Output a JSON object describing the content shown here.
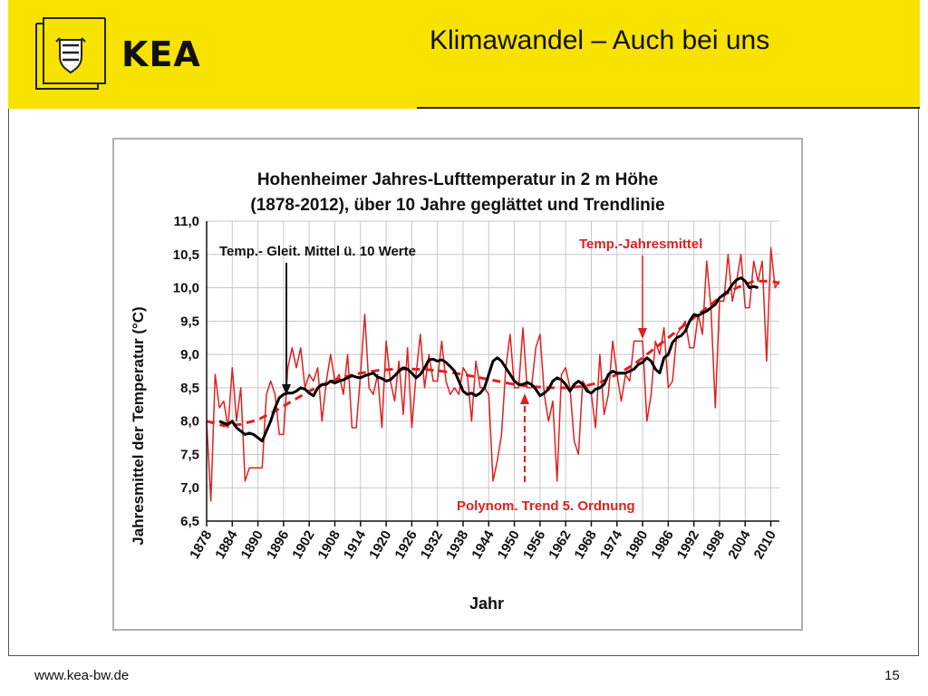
{
  "header": {
    "logo_text": "KEA",
    "slide_title": "Klimawandel – Auch bei uns"
  },
  "footer": {
    "url": "www.kea-bw.de",
    "page_number": "15"
  },
  "icons": {
    "coat_of_arms": "coat-of-arms-icon"
  },
  "colors": {
    "header_bg": "#f7e200",
    "annual_series": "#e02020",
    "trend_series": "#e02020",
    "smoothed_series": "#000000",
    "chart_bg": "#ffffff",
    "chart_border": "#b0b0b0"
  },
  "chart_data": {
    "type": "line",
    "title_line1": "Hohenheimer Jahres-Lufttemperatur in 2 m Höhe",
    "title_line2": "(1878-2012), über 10 Jahre geglättet und Trendlinie",
    "xlabel": "Jahr",
    "ylabel": "Jahresmittel der Temperatur (°C)",
    "xlim": [
      1878,
      2012
    ],
    "ylim": [
      6.5,
      11.0
    ],
    "grid": true,
    "x_ticks": [
      1878,
      1884,
      1890,
      1896,
      1902,
      1908,
      1914,
      1920,
      1926,
      1932,
      1938,
      1944,
      1950,
      1956,
      1962,
      1968,
      1974,
      1980,
      1986,
      1992,
      1998,
      2004,
      2010
    ],
    "y_ticks": [
      6.5,
      7.0,
      7.5,
      8.0,
      8.5,
      9.0,
      9.5,
      10.0,
      10.5,
      11.0
    ],
    "y_tick_labels": [
      "6,5",
      "7,0",
      "7,5",
      "8,0",
      "8,5",
      "9,0",
      "9,5",
      "10,0",
      "10,5",
      "11,0"
    ],
    "annotations": {
      "smoothed": "Temp.- Gleit. Mittel ü. 10 Werte",
      "annual": "Temp.-Jahresmittel",
      "trend": "Polynom. Trend 5. Ordnung"
    },
    "series": [
      {
        "key": "annual",
        "x": [
          1878,
          1879,
          1880,
          1881,
          1882,
          1883,
          1884,
          1885,
          1886,
          1887,
          1888,
          1889,
          1890,
          1891,
          1892,
          1893,
          1894,
          1895,
          1896,
          1897,
          1898,
          1899,
          1900,
          1901,
          1902,
          1903,
          1904,
          1905,
          1906,
          1907,
          1908,
          1909,
          1910,
          1911,
          1912,
          1913,
          1914,
          1915,
          1916,
          1917,
          1918,
          1919,
          1920,
          1921,
          1922,
          1923,
          1924,
          1925,
          1926,
          1927,
          1928,
          1929,
          1930,
          1931,
          1932,
          1933,
          1934,
          1935,
          1936,
          1937,
          1938,
          1939,
          1940,
          1941,
          1942,
          1943,
          1944,
          1945,
          1946,
          1947,
          1948,
          1949,
          1950,
          1951,
          1952,
          1953,
          1954,
          1955,
          1956,
          1957,
          1958,
          1959,
          1960,
          1961,
          1962,
          1963,
          1964,
          1965,
          1966,
          1967,
          1968,
          1969,
          1970,
          1971,
          1972,
          1973,
          1974,
          1975,
          1976,
          1977,
          1978,
          1979,
          1980,
          1981,
          1982,
          1983,
          1984,
          1985,
          1986,
          1987,
          1988,
          1989,
          1990,
          1991,
          1992,
          1993,
          1994,
          1995,
          1996,
          1997,
          1998,
          1999,
          2000,
          2001,
          2002,
          2003,
          2004,
          2005,
          2006,
          2007,
          2008,
          2009,
          2010,
          2011,
          2012
        ],
        "values": [
          8.0,
          6.8,
          8.7,
          8.2,
          8.3,
          7.9,
          8.8,
          8.0,
          8.5,
          7.1,
          7.3,
          7.3,
          7.3,
          7.3,
          8.4,
          8.6,
          8.4,
          7.8,
          7.8,
          8.8,
          9.1,
          8.8,
          9.1,
          8.5,
          8.7,
          8.6,
          8.8,
          8.0,
          8.6,
          9.0,
          8.6,
          8.7,
          8.4,
          9.0,
          7.9,
          7.9,
          8.7,
          9.6,
          8.5,
          8.4,
          8.7,
          7.9,
          9.2,
          8.6,
          8.3,
          8.9,
          8.1,
          9.1,
          7.9,
          8.7,
          9.3,
          8.5,
          9.0,
          8.6,
          8.6,
          9.2,
          8.6,
          8.4,
          8.5,
          8.4,
          8.8,
          8.7,
          8.0,
          8.9,
          8.5,
          8.5,
          8.4,
          7.1,
          7.4,
          7.8,
          8.8,
          9.3,
          8.5,
          8.5,
          9.4,
          8.5,
          8.5,
          9.1,
          9.3,
          8.4,
          8.0,
          8.3,
          7.1,
          8.7,
          8.8,
          8.5,
          7.7,
          7.5,
          8.6,
          8.5,
          8.4,
          7.9,
          9.0,
          8.1,
          8.4,
          9.2,
          8.7,
          8.3,
          8.7,
          8.6,
          9.2,
          9.2,
          9.2,
          8.0,
          8.4,
          9.2,
          9.0,
          9.4,
          8.5,
          8.6,
          9.3,
          9.4,
          9.5,
          9.1,
          9.1,
          9.6,
          9.3,
          10.4,
          9.7,
          8.2,
          9.8,
          9.8,
          10.5,
          9.8,
          10.1,
          10.5,
          9.7,
          9.7,
          10.4,
          10.1,
          10.4,
          8.9,
          10.6,
          10.0,
          10.1
        ]
      },
      {
        "key": "smoothed",
        "x": [
          1881,
          1882,
          1883,
          1884,
          1885,
          1886,
          1887,
          1888,
          1889,
          1890,
          1891,
          1892,
          1893,
          1894,
          1895,
          1896,
          1897,
          1898,
          1899,
          1900,
          1901,
          1902,
          1903,
          1904,
          1905,
          1906,
          1907,
          1908,
          1909,
          1910,
          1911,
          1912,
          1913,
          1914,
          1915,
          1916,
          1917,
          1918,
          1919,
          1920,
          1921,
          1922,
          1923,
          1924,
          1925,
          1926,
          1927,
          1928,
          1929,
          1930,
          1931,
          1932,
          1933,
          1934,
          1935,
          1936,
          1937,
          1938,
          1939,
          1940,
          1941,
          1942,
          1943,
          1944,
          1945,
          1946,
          1947,
          1948,
          1949,
          1950,
          1951,
          1952,
          1953,
          1954,
          1955,
          1956,
          1957,
          1958,
          1959,
          1960,
          1961,
          1962,
          1963,
          1964,
          1965,
          1966,
          1967,
          1968,
          1969,
          1970,
          1971,
          1972,
          1973,
          1974,
          1975,
          1976,
          1977,
          1978,
          1979,
          1980,
          1981,
          1982,
          1983,
          1984,
          1985,
          1986,
          1987,
          1988,
          1989,
          1990,
          1991,
          1992,
          1993,
          1994,
          1995,
          1996,
          1997,
          1998,
          1999,
          2000,
          2001,
          2002,
          2003,
          2004,
          2005,
          2006,
          2007
        ],
        "values": [
          8.0,
          7.97,
          7.95,
          8.0,
          7.9,
          7.85,
          7.8,
          7.82,
          7.8,
          7.75,
          7.7,
          7.85,
          8.0,
          8.2,
          8.35,
          8.4,
          8.42,
          8.42,
          8.45,
          8.5,
          8.48,
          8.42,
          8.38,
          8.5,
          8.55,
          8.55,
          8.6,
          8.57,
          8.6,
          8.62,
          8.65,
          8.68,
          8.66,
          8.65,
          8.68,
          8.7,
          8.72,
          8.66,
          8.64,
          8.6,
          8.62,
          8.68,
          8.75,
          8.8,
          8.78,
          8.72,
          8.65,
          8.7,
          8.8,
          8.92,
          8.93,
          8.9,
          8.92,
          8.88,
          8.82,
          8.75,
          8.6,
          8.45,
          8.4,
          8.42,
          8.38,
          8.42,
          8.5,
          8.7,
          8.9,
          8.95,
          8.9,
          8.8,
          8.7,
          8.6,
          8.55,
          8.55,
          8.58,
          8.55,
          8.48,
          8.38,
          8.42,
          8.48,
          8.6,
          8.65,
          8.62,
          8.55,
          8.45,
          8.55,
          8.6,
          8.55,
          8.45,
          8.42,
          8.48,
          8.5,
          8.55,
          8.7,
          8.75,
          8.72,
          8.72,
          8.72,
          8.75,
          8.78,
          8.85,
          8.88,
          8.95,
          8.9,
          8.78,
          8.72,
          8.95,
          9.0,
          9.18,
          9.25,
          9.28,
          9.35,
          9.5,
          9.6,
          9.58,
          9.62,
          9.65,
          9.7,
          9.75,
          9.85,
          9.9,
          9.95,
          10.05,
          10.12,
          10.15,
          10.1,
          10.0,
          10.02,
          10.0
        ]
      },
      {
        "key": "trend",
        "x": [
          1878,
          1882,
          1886,
          1890,
          1894,
          1898,
          1902,
          1906,
          1910,
          1914,
          1918,
          1922,
          1926,
          1930,
          1934,
          1938,
          1942,
          1946,
          1950,
          1954,
          1958,
          1962,
          1966,
          1970,
          1974,
          1978,
          1982,
          1986,
          1990,
          1994,
          1998,
          2002,
          2006,
          2010,
          2012
        ],
        "values": [
          8.0,
          7.93,
          7.95,
          8.02,
          8.15,
          8.3,
          8.45,
          8.57,
          8.66,
          8.72,
          8.76,
          8.78,
          8.78,
          8.77,
          8.74,
          8.7,
          8.65,
          8.6,
          8.55,
          8.52,
          8.5,
          8.5,
          8.52,
          8.58,
          8.7,
          8.85,
          9.05,
          9.25,
          9.45,
          9.65,
          9.85,
          10.0,
          10.1,
          10.1,
          10.07
        ]
      }
    ]
  }
}
